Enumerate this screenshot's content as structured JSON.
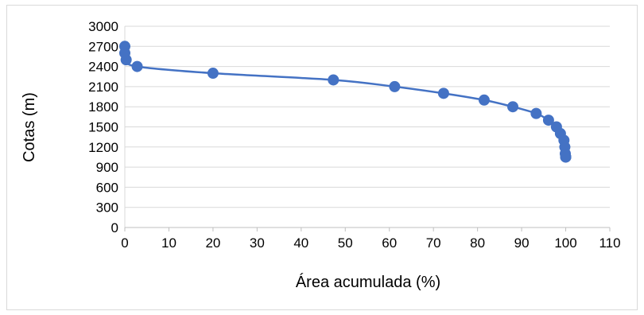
{
  "chart_data": {
    "type": "scatter",
    "title": "",
    "xlabel": "Área acumulada (%)",
    "ylabel": "Cotas (m)",
    "xlim": [
      0,
      110
    ],
    "ylim": [
      0,
      3000
    ],
    "x_ticks": [
      0,
      10,
      20,
      30,
      40,
      50,
      60,
      70,
      80,
      90,
      100,
      110
    ],
    "y_ticks": [
      0,
      300,
      600,
      900,
      1200,
      1500,
      1800,
      2100,
      2400,
      2700,
      3000
    ],
    "grid": "horizontal",
    "legend": "none",
    "line_color": "#4472c4",
    "marker_color": "#4472c4",
    "smooth": true,
    "series": [
      {
        "x": [
          0,
          0,
          0.3,
          2.8,
          20,
          47.3,
          61.2,
          72.3,
          81.5,
          88,
          93.3,
          96.1,
          97.9,
          98.8,
          99.6,
          99.8,
          99.9,
          100,
          100
        ],
        "y": [
          2700,
          2600,
          2500,
          2400,
          2300,
          2200,
          2100,
          2000,
          1900,
          1800,
          1700,
          1600,
          1500,
          1400,
          1300,
          1200,
          1100,
          1050,
          1050
        ]
      }
    ]
  }
}
